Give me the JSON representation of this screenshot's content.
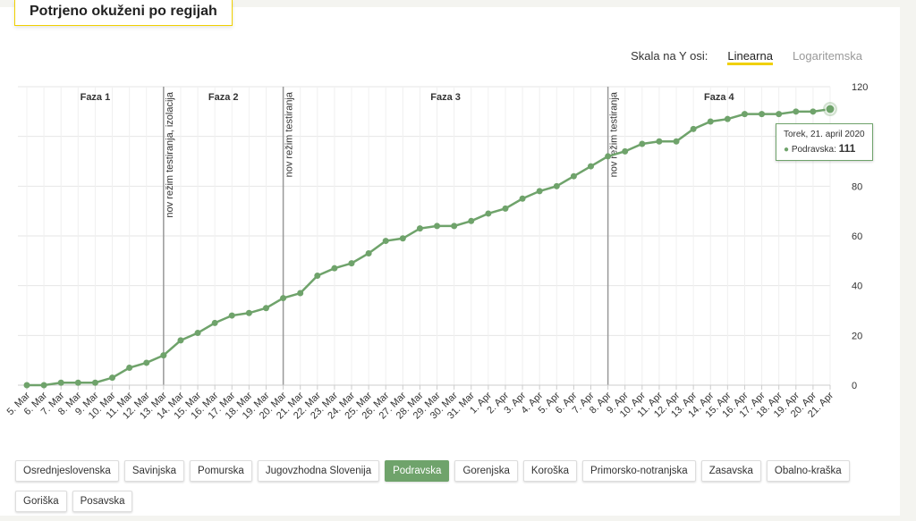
{
  "header": {
    "title": "Potrjeno okuženi po regijah"
  },
  "scale": {
    "label": "Skala na Y osi:",
    "options": [
      "Linearna",
      "Logaritemska"
    ],
    "selected": 0
  },
  "chart_data": {
    "type": "line",
    "categories": [
      "5. Mar",
      "6. Mar",
      "7. Mar",
      "8. Mar",
      "9. Mar",
      "10. Mar",
      "11. Mar",
      "12. Mar",
      "13. Mar",
      "14. Mar",
      "15. Mar",
      "16. Mar",
      "17. Mar",
      "18. Mar",
      "19. Mar",
      "20. Mar",
      "21. Mar",
      "22. Mar",
      "23. Mar",
      "24. Mar",
      "25. Mar",
      "26. Mar",
      "27. Mar",
      "28. Mar",
      "29. Mar",
      "30. Mar",
      "31. Mar",
      "1. Apr",
      "2. Apr",
      "3. Apr",
      "4. Apr",
      "5. Apr",
      "6. Apr",
      "7. Apr",
      "8. Apr",
      "9. Apr",
      "10. Apr",
      "11. Apr",
      "12. Apr",
      "13. Apr",
      "14. Apr",
      "15. Apr",
      "16. Apr",
      "17. Apr",
      "18. Apr",
      "19. Apr",
      "20. Apr",
      "21. Apr"
    ],
    "series": [
      {
        "name": "Podravska",
        "color": "#6fa36b",
        "values": [
          0,
          0,
          1,
          1,
          1,
          3,
          7,
          9,
          12,
          18,
          21,
          25,
          28,
          29,
          31,
          35,
          37,
          44,
          47,
          49,
          53,
          58,
          59,
          63,
          64,
          64,
          66,
          69,
          71,
          75,
          78,
          80,
          84,
          88,
          92,
          94,
          97,
          98,
          98,
          103,
          106,
          107,
          109,
          109,
          109,
          110,
          110,
          111
        ]
      }
    ],
    "ylim": [
      0,
      120
    ],
    "yticks": [
      0,
      20,
      40,
      60,
      80,
      100,
      120
    ],
    "grid": true,
    "phases": [
      "Faza 1",
      "Faza 2",
      "Faza 3",
      "Faza 4"
    ],
    "annotations": [
      {
        "category": "13. Mar",
        "label": "nov režim testiranja, izolacija"
      },
      {
        "category": "20. Mar",
        "label": "nov režim testiranja"
      },
      {
        "category": "8. Apr",
        "label": "nov režim testiranja"
      }
    ],
    "tooltip": {
      "date": "Torek, 21. april 2020",
      "label": "Podravska:"
    }
  },
  "regions": {
    "items": [
      "Osrednjeslovenska",
      "Savinjska",
      "Pomurska",
      "Jugovzhodna Slovenija",
      "Podravska",
      "Gorenjska",
      "Koroška",
      "Primorsko-notranjska",
      "Zasavska",
      "Obalno-kraška",
      "Goriška",
      "Posavska"
    ],
    "selected": 4
  }
}
